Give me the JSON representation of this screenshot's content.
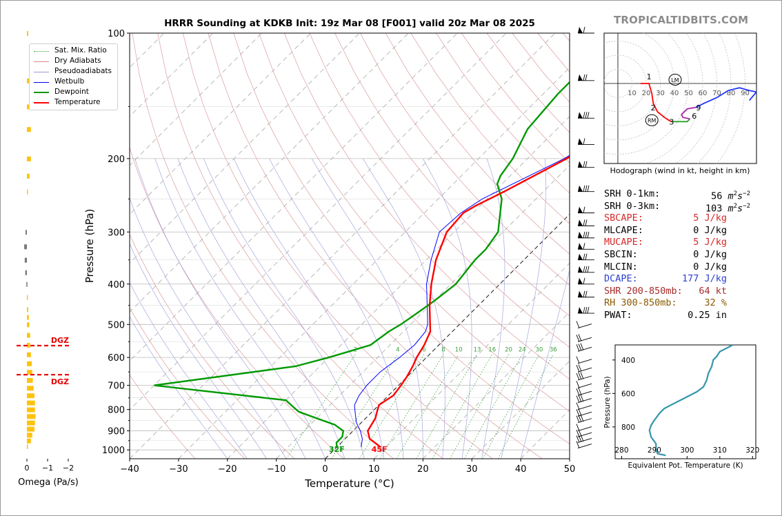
{
  "site": {
    "brand": "TROPICALTIDBITS.COM",
    "title": "HRRR Sounding at KDKB Init: 19z Mar 08 [F001] valid 20z Mar 08 2025"
  },
  "legend": [
    {
      "label": "Sat. Mix. Ratio",
      "color": "#2ca02c",
      "style": "dotted"
    },
    {
      "label": "Dry Adiabats",
      "color": "#d98a8a",
      "style": "solid"
    },
    {
      "label": "Pseudoadiabats",
      "color": "#9a9ad8",
      "style": "solid"
    },
    {
      "label": "Wetbulb",
      "color": "#0000ff",
      "style": "solid"
    },
    {
      "label": "Dewpoint",
      "color": "#009900",
      "style": "solid"
    },
    {
      "label": "Temperature",
      "color": "#ff0000",
      "style": "solid"
    }
  ],
  "labels": {
    "freezing": "32F",
    "surface_temp": "45F",
    "dgz": "DGZ",
    "hodograph_caption": "Hodograph (wind in kt, height in km)",
    "omega_label": "Omega (Pa/s)",
    "theta_e_xlabel": "Equivalent Pot. Temperature (K)",
    "theta_e_ylabel": "Pressure (hPa)"
  },
  "colors": {
    "temperature": "#ff0000",
    "dewpoint": "#009900",
    "wetbulb": "#0000ff",
    "theta_e": "#3a98ad",
    "omega": "#ffc20e",
    "dgz": "#e60000"
  },
  "stats": [
    {
      "label": "SRH 0-1km:",
      "value": "56",
      "unit": "m2s-2",
      "color": "#000000"
    },
    {
      "label": "SRH 0-3km:",
      "value": "103",
      "unit": "m2s-2",
      "color": "#000000"
    },
    {
      "label": "SBCAPE:",
      "value": "5 J/kg",
      "color": "#d62728"
    },
    {
      "label": "MLCAPE:",
      "value": "0 J/kg",
      "color": "#000000"
    },
    {
      "label": "MUCAPE:",
      "value": "5 J/kg",
      "color": "#d62728"
    },
    {
      "label": "SBCIN:",
      "value": "0 J/kg",
      "color": "#000000"
    },
    {
      "label": "MLCIN:",
      "value": "0 J/kg",
      "color": "#000000"
    },
    {
      "label": "DCAPE:",
      "value": "177 J/kg",
      "color": "#2a3fd0"
    },
    {
      "label": "SHR 200-850mb:",
      "value": "64 kt",
      "color": "#a52a2a"
    },
    {
      "label": "RH 300-850mb:",
      "value": "32 %",
      "color": "#8b5a00"
    },
    {
      "label": "PWAT:",
      "value": "0.25 in",
      "color": "#000000"
    }
  ],
  "chart_data": [
    {
      "type": "line",
      "title": "HRRR Sounding at KDKB Init: 19z Mar 08 [F001] valid 20z Mar 08 2025",
      "xlabel": "Temperature (°C)",
      "ylabel": "Pressure (hPa)",
      "xlim": [
        -40,
        50
      ],
      "ylim": [
        1050,
        100
      ],
      "yscale": "log",
      "x_ticks": [
        -40,
        -30,
        -20,
        -10,
        0,
        10,
        20,
        30,
        40,
        50
      ],
      "y_ticks": [
        100,
        200,
        300,
        400,
        500,
        600,
        700,
        800,
        900,
        1000
      ],
      "mixing_ratio_labels": [
        "2",
        "4",
        "6",
        "8",
        "10",
        "13",
        "16",
        "20",
        "24",
        "30",
        "36"
      ],
      "series": [
        {
          "name": "Temperature",
          "pressure": [
            985,
            940,
            900,
            870,
            840,
            810,
            780,
            740,
            700,
            670,
            630,
            600,
            560,
            520,
            500,
            450,
            400,
            350,
            300,
            270,
            260,
            240,
            200,
            170,
            150,
            130,
            115,
            100
          ],
          "temperature": [
            9,
            5,
            3,
            2.5,
            2,
            1,
            0,
            1,
            0.5,
            0,
            -1,
            -2,
            -3,
            -4.5,
            -6,
            -10,
            -14,
            -18,
            -21.5,
            -22,
            -21,
            -18,
            -12,
            -8,
            -5,
            -3,
            -1.5,
            0.5
          ]
        },
        {
          "name": "Dewpoint",
          "pressure": [
            985,
            960,
            930,
            900,
            870,
            840,
            810,
            790,
            760,
            700,
            630,
            600,
            580,
            560,
            520,
            500,
            470,
            440,
            400,
            350,
            330,
            300,
            250,
            230,
            220,
            200,
            170,
            140,
            120,
            100
          ],
          "temperature": [
            0,
            -1,
            -1,
            -2,
            -5,
            -10,
            -15,
            -17,
            -20,
            -50,
            -25,
            -20,
            -17,
            -14,
            -13,
            -12,
            -11,
            -10,
            -9,
            -10,
            -10,
            -11,
            -17,
            -21,
            -22,
            -23,
            -26,
            -27,
            -27,
            -27
          ]
        },
        {
          "name": "Wetbulb",
          "pressure": [
            985,
            940,
            900,
            860,
            820,
            780,
            740,
            700,
            650,
            600,
            560,
            520,
            500,
            450,
            400,
            350,
            300,
            270,
            250,
            200,
            170,
            150,
            130,
            115,
            100
          ],
          "temperature": [
            5,
            3.5,
            1.5,
            -1,
            -3,
            -5,
            -6,
            -6.5,
            -6.5,
            -5.5,
            -5,
            -5.5,
            -6.5,
            -10.5,
            -15,
            -19,
            -23,
            -22.5,
            -21,
            -12.5,
            -8.5,
            -5.5,
            -3.5,
            -2.5,
            -1
          ]
        }
      ],
      "wind_barb_pressures": [
        100,
        130,
        160,
        185,
        210,
        240,
        270,
        290,
        310,
        330,
        350,
        375,
        400,
        430,
        470,
        510,
        550,
        580,
        620,
        650,
        680,
        710,
        740,
        770,
        800,
        830,
        860,
        900,
        930,
        960,
        990
      ]
    },
    {
      "type": "line",
      "title": "Hodograph (wind in kt, height in km)",
      "rings": [
        "10",
        "20",
        "30",
        "40",
        "50",
        "60",
        "70",
        "80",
        "90"
      ],
      "height_labels": [
        "1",
        "2",
        "3",
        "6",
        "9"
      ],
      "markers": [
        "LM",
        "RM"
      ],
      "series": [
        {
          "name": "0-3 km",
          "color": "#ff0000",
          "u": [
            16,
            22,
            24,
            25,
            28,
            33,
            36,
            38
          ],
          "v": [
            0,
            0,
            -7,
            -14,
            -20,
            -24,
            -26,
            -27
          ]
        },
        {
          "name": "3-6 km",
          "color": "#2ca02c",
          "u": [
            38,
            44,
            49,
            51
          ],
          "v": [
            -27,
            -27,
            -27,
            -25
          ]
        },
        {
          "name": "6-9 km",
          "color": "#b020b0",
          "u": [
            51,
            46,
            45,
            49,
            55
          ],
          "v": [
            -25,
            -24,
            -22,
            -18,
            -17
          ]
        },
        {
          "name": "9-12 km",
          "color": "#1f35ff",
          "u": [
            55,
            61,
            70,
            78,
            86,
            93,
            98,
            93
          ],
          "v": [
            -17,
            -14,
            -10,
            -5,
            -3,
            -5,
            -6,
            -12
          ]
        }
      ]
    },
    {
      "type": "line",
      "title": "",
      "xlabel": "Equivalent Pot. Temperature (K)",
      "ylabel": "Pressure (hPa)",
      "xlim": [
        278,
        321
      ],
      "ylim": [
        990,
        310
      ],
      "x_ticks": [
        280,
        290,
        300,
        310,
        320
      ],
      "y_ticks": [
        400,
        600,
        800
      ],
      "series": [
        {
          "name": "theta-e",
          "pressure": [
            970,
            960,
            935,
            900,
            860,
            820,
            790,
            760,
            720,
            690,
            660,
            620,
            590,
            560,
            520,
            480,
            440,
            400,
            380,
            350,
            330,
            310
          ],
          "theta": [
            293.5,
            291,
            290.5,
            290.5,
            289,
            288.5,
            289,
            290,
            291.5,
            293,
            296,
            300,
            303,
            305,
            306,
            306.5,
            307.5,
            308,
            309,
            310,
            312,
            314
          ]
        }
      ]
    },
    {
      "type": "bar",
      "title": "",
      "xlabel": "Omega (Pa/s)",
      "xlim": [
        0.3,
        -2.2
      ],
      "x_ticks": [
        "0",
        "−1",
        "−2"
      ],
      "pressure": [
        100,
        130,
        150,
        170,
        200,
        220,
        240,
        300,
        325,
        350,
        375,
        400,
        430,
        460,
        480,
        500,
        530,
        560,
        590,
        620,
        650,
        680,
        710,
        740,
        770,
        800,
        830,
        860,
        890,
        920,
        950,
        980
      ],
      "values": [
        -0.05,
        -0.1,
        -0.1,
        -0.15,
        -0.15,
        -0.1,
        -0.03,
        0.05,
        0.1,
        0.08,
        0.06,
        0.02,
        -0.03,
        -0.05,
        -0.07,
        -0.09,
        -0.12,
        -0.12,
        -0.15,
        -0.18,
        -0.2,
        -0.22,
        -0.25,
        -0.28,
        -0.3,
        -0.3,
        -0.32,
        -0.3,
        -0.28,
        -0.2,
        -0.15,
        -0.02
      ]
    }
  ]
}
